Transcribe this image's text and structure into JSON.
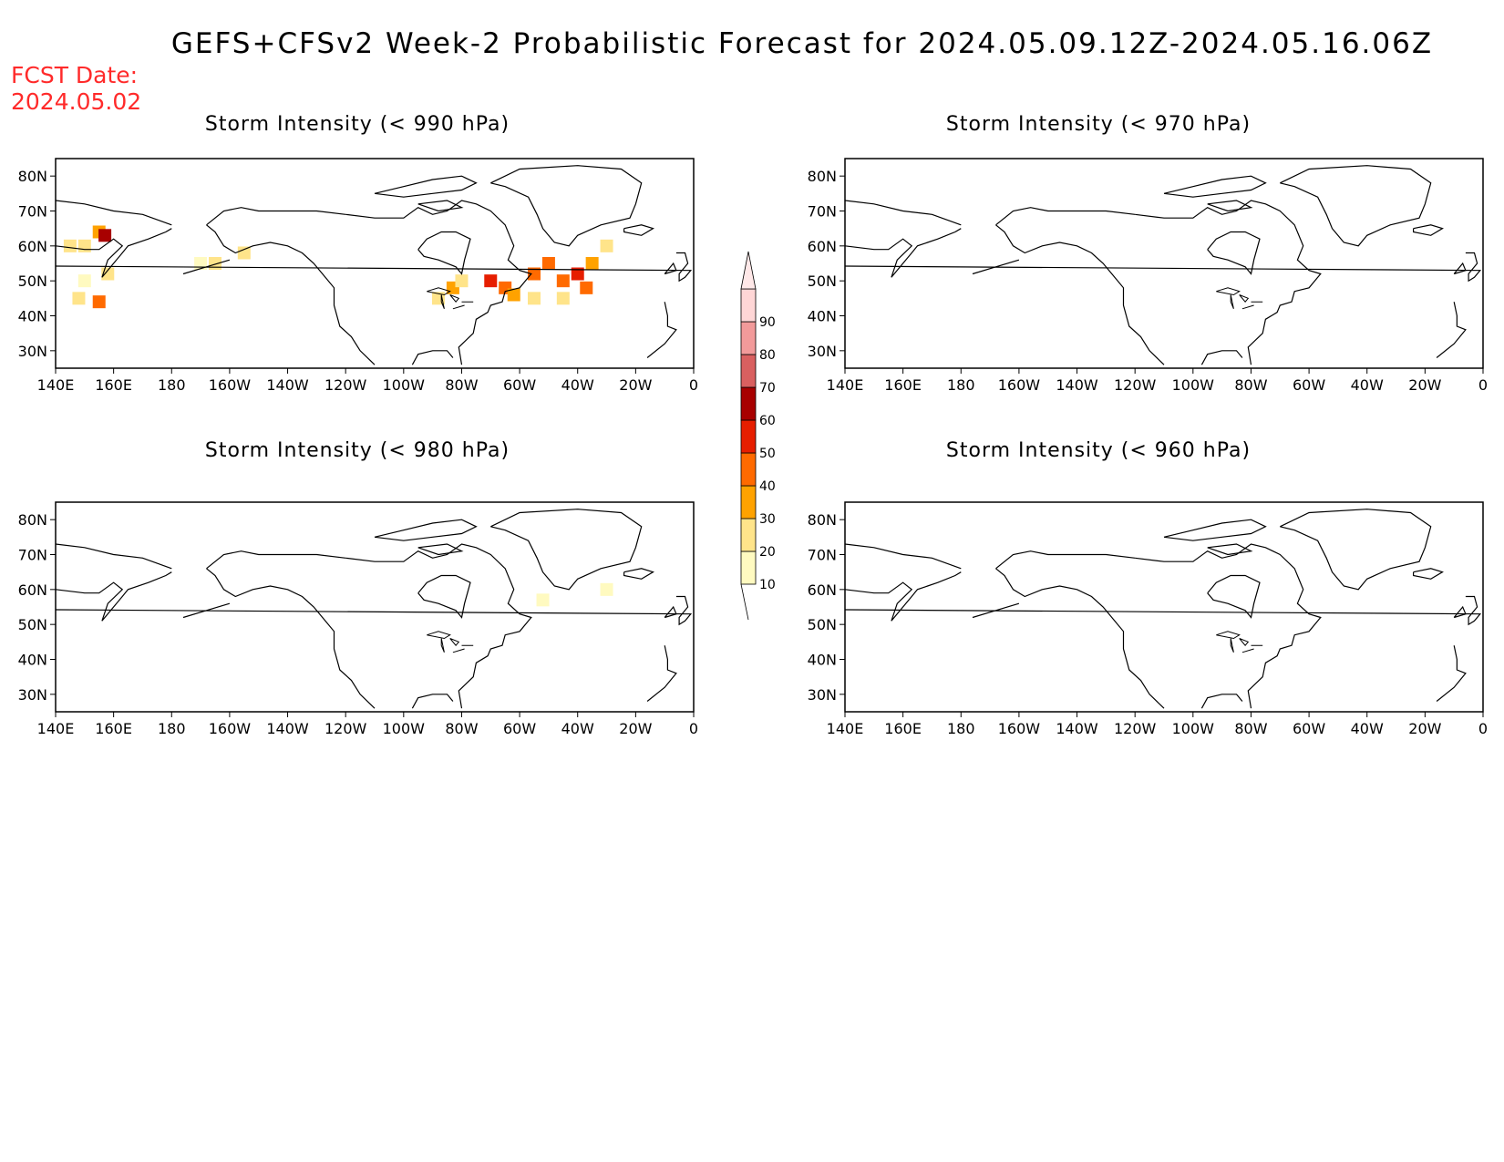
{
  "title": "GEFS+CFSv2 Week-2 Probabilistic Forecast for 2024.05.09.12Z-2024.05.16.06Z",
  "fcst_label": "FCST Date:",
  "fcst_date": "2024.05.02",
  "panels": [
    {
      "id": "p990",
      "title": "Storm Intensity (< 990 hPa)"
    },
    {
      "id": "p970",
      "title": "Storm Intensity (< 970 hPa)"
    },
    {
      "id": "p980",
      "title": "Storm Intensity (< 980 hPa)"
    },
    {
      "id": "p960",
      "title": "Storm Intensity (< 960 hPa)"
    }
  ],
  "axes": {
    "lon_ticks": [
      "140E",
      "160E",
      "180",
      "160W",
      "140W",
      "120W",
      "100W",
      "80W",
      "60W",
      "40W",
      "20W",
      "0"
    ],
    "lat_ticks": [
      "80N",
      "70N",
      "60N",
      "50N",
      "40N",
      "30N"
    ]
  },
  "colorbar": {
    "levels": [
      "10",
      "20",
      "30",
      "40",
      "50",
      "60",
      "70",
      "80",
      "90"
    ],
    "colors": [
      "#fffac0",
      "#ffe48a",
      "#ffa200",
      "#ff6a00",
      "#e61e00",
      "#a80000",
      "#d96060",
      "#f29a9a",
      "#ffd6d6"
    ]
  },
  "chart_data": {
    "type": "heatmap",
    "domain": {
      "lon_range": [
        "140E",
        "0"
      ],
      "lat_range": [
        25,
        85
      ]
    },
    "fields": {
      "p990": [
        {
          "lon": 145,
          "lat": 60,
          "prob": 20
        },
        {
          "lon": 150,
          "lat": 60,
          "prob": 20
        },
        {
          "lon": 155,
          "lat": 64,
          "prob": 30
        },
        {
          "lon": 157,
          "lat": 63,
          "prob": 60
        },
        {
          "lon": 150,
          "lat": 50,
          "prob": 10
        },
        {
          "lon": 148,
          "lat": 45,
          "prob": 20
        },
        {
          "lon": 155,
          "lat": 44,
          "prob": 40
        },
        {
          "lon": 158,
          "lat": 52,
          "prob": 20
        },
        {
          "lon": -170,
          "lat": 55,
          "prob": 10
        },
        {
          "lon": -165,
          "lat": 55,
          "prob": 20
        },
        {
          "lon": -155,
          "lat": 58,
          "prob": 20
        },
        {
          "lon": -88,
          "lat": 45,
          "prob": 20
        },
        {
          "lon": -83,
          "lat": 48,
          "prob": 30
        },
        {
          "lon": -80,
          "lat": 50,
          "prob": 20
        },
        {
          "lon": -70,
          "lat": 50,
          "prob": 50
        },
        {
          "lon": -65,
          "lat": 48,
          "prob": 40
        },
        {
          "lon": -62,
          "lat": 46,
          "prob": 30
        },
        {
          "lon": -55,
          "lat": 52,
          "prob": 40
        },
        {
          "lon": -50,
          "lat": 55,
          "prob": 40
        },
        {
          "lon": -45,
          "lat": 50,
          "prob": 40
        },
        {
          "lon": -40,
          "lat": 52,
          "prob": 50
        },
        {
          "lon": -37,
          "lat": 48,
          "prob": 40
        },
        {
          "lon": -35,
          "lat": 55,
          "prob": 30
        },
        {
          "lon": -30,
          "lat": 60,
          "prob": 20
        },
        {
          "lon": -45,
          "lat": 45,
          "prob": 20
        },
        {
          "lon": -55,
          "lat": 45,
          "prob": 20
        }
      ],
      "p970": [],
      "p980": [
        {
          "lon": -30,
          "lat": 60,
          "prob": 10
        },
        {
          "lon": -52,
          "lat": 57,
          "prob": 10
        }
      ],
      "p960": []
    }
  }
}
